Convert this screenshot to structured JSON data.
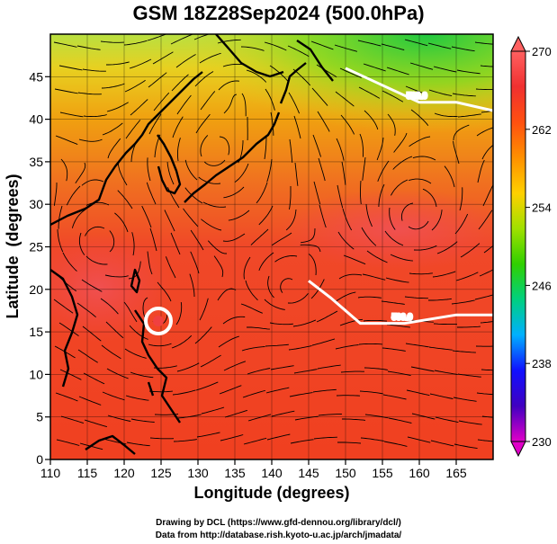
{
  "title": "GSM 18Z28Sep2024 (500.0hPa)",
  "xlabel": "Longitude (degrees)",
  "ylabel": "Latitude  (degrees)",
  "x_ticks": [
    110,
    115,
    120,
    125,
    130,
    135,
    140,
    145,
    150,
    155,
    160,
    165
  ],
  "y_ticks": [
    0,
    5,
    10,
    15,
    20,
    25,
    30,
    35,
    40,
    45
  ],
  "x_range": [
    110,
    170
  ],
  "y_range": [
    0,
    50
  ],
  "colorbar": {
    "ticks": [
      230,
      238,
      246,
      254,
      262,
      270
    ],
    "range": [
      230,
      270
    ],
    "colors": [
      "#e000c8",
      "#4000c0",
      "#1010ff",
      "#00b0ff",
      "#00d080",
      "#30d000",
      "#a0e000",
      "#ffd000",
      "#ff9000",
      "#ff5010",
      "#f03030",
      "#ff6060"
    ]
  },
  "contours": [
    {
      "label": "500.0",
      "lat_lon_points": [
        [
          150,
          46
        ],
        [
          155,
          44
        ],
        [
          160,
          42
        ],
        [
          165,
          42
        ],
        [
          170,
          41
        ]
      ]
    },
    {
      "label": "500.0",
      "lat_lon_points": [
        [
          145,
          21
        ],
        [
          148,
          19
        ],
        [
          152,
          16
        ],
        [
          158,
          16
        ],
        [
          165,
          17
        ],
        [
          170,
          17
        ]
      ]
    }
  ],
  "credits": [
    "Drawing by DCL (https://www.gfd-dennou.org/library/dcl/)",
    "Data from http://database.rish.kyoto-u.ac.jp/arch/jmadata/"
  ]
}
